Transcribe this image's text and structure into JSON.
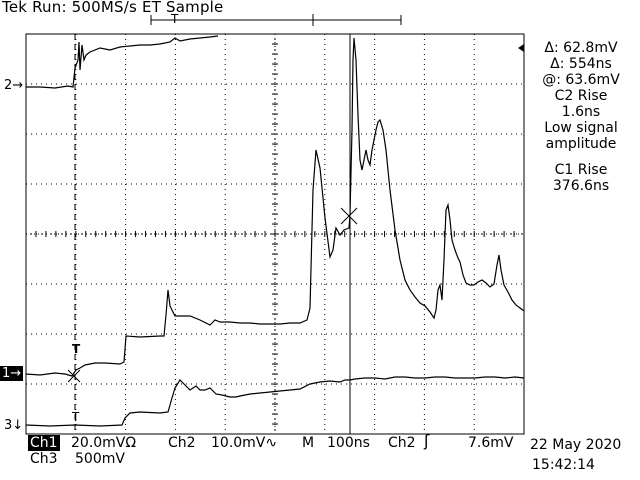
{
  "header": {
    "status": "Tek Run: 500MS/s ET Sample",
    "trigger_marker": "T"
  },
  "markers": {
    "ch2": "2",
    "ch1": "1",
    "ch3": "3",
    "trig_ch1": "T",
    "trig_ch3": "T"
  },
  "measurements": {
    "delta_v": "Δ: 62.8mV",
    "delta_t": "Δ: 554ns",
    "at": "@: 63.6mV",
    "c2_rise_label": "C2 Rise",
    "c2_rise_value": "1.6ns",
    "c2_note_1": "Low signal",
    "c2_note_2": "amplitude",
    "c1_rise_label": "C1 Rise",
    "c1_rise_value": "376.6ns"
  },
  "footer": {
    "ch1_tag": "Ch1",
    "ch1_scale": "20.0mVΩ",
    "ch2_label": "Ch2",
    "ch2_scale": "10.0mV∿",
    "timebase_label": "M",
    "timebase_value": "100ns",
    "trigger_ch": "Ch2",
    "trigger_slope": "ʃ",
    "trigger_level": "7.6mV",
    "ch3_label": "Ch3",
    "ch3_scale": "500mV",
    "date": "22 May 2020",
    "time": "15:42:14"
  },
  "colors": {
    "background": "#ffffff",
    "trace": "#000000",
    "grid": "#000000"
  }
}
